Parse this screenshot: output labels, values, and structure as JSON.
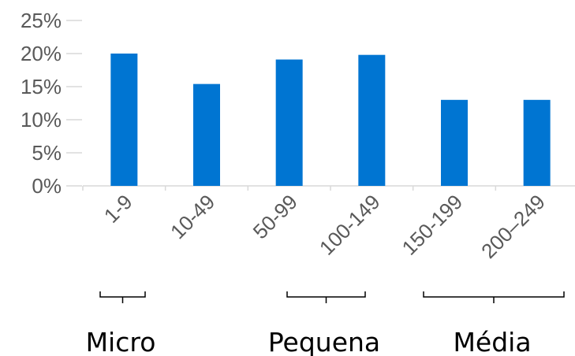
{
  "colors": {
    "bar": "#0075D2",
    "axis": "#D9D9D9",
    "tick_text": "#595959",
    "group_text": "#000000"
  },
  "chart_data": {
    "type": "bar",
    "categories": [
      "1-9",
      "10-49",
      "50-99",
      "100-149",
      "150-199",
      "200–249"
    ],
    "values": [
      20,
      15.4,
      19.1,
      19.8,
      13.0,
      13.0
    ],
    "ylim": [
      0,
      25
    ],
    "yticks": [
      "0%",
      "5%",
      "10%",
      "15%",
      "20%",
      "25%"
    ],
    "title": "",
    "xlabel": "",
    "ylabel": "",
    "grid": false,
    "groups": [
      {
        "label": "Micro",
        "categories": [
          "1-9"
        ]
      },
      {
        "label": "Pequena",
        "categories": [
          "50-99",
          "100-149"
        ]
      },
      {
        "label": "Média",
        "categories": [
          "150-199",
          "200–249"
        ]
      }
    ]
  }
}
